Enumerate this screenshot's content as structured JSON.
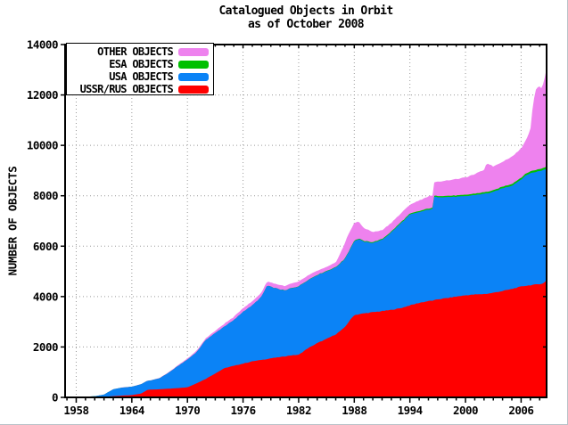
{
  "window": {
    "background": "#ffffff",
    "edge_border_color": "#b9c2c9"
  },
  "chart_data": {
    "type": "area",
    "stacked": true,
    "title": "Catalogued Objects in Orbit",
    "subtitle": "as of October 2008",
    "xlabel": "",
    "ylabel": "NUMBER OF OBJECTS",
    "xlim": [
      1956.8,
      2008.75
    ],
    "ylim": [
      0,
      14000
    ],
    "x_ticks": [
      1958,
      1964,
      1970,
      1976,
      1982,
      1988,
      1994,
      2000,
      2006
    ],
    "x_minor_tick_step": 1,
    "y_ticks": [
      0,
      2000,
      4000,
      6000,
      8000,
      10000,
      12000,
      14000
    ],
    "grid": "dotted",
    "grid_color": "#9a9a9a",
    "axis_color": "#000000",
    "legend": {
      "position": "top-left",
      "entries": [
        "other",
        "esa",
        "usa",
        "ussr_rus"
      ]
    },
    "years": [
      1957,
      1958,
      1959,
      1960,
      1961,
      1961.5,
      1962,
      1963,
      1964,
      1965,
      1965.7,
      1966,
      1967,
      1968,
      1969,
      1970,
      1971,
      1972,
      1973,
      1974,
      1975,
      1976,
      1977,
      1978,
      1978.6,
      1979,
      1980,
      1980.6,
      1981,
      1982,
      1983,
      1984,
      1985,
      1986,
      1986.9,
      1987.3,
      1988,
      1988.5,
      1989,
      1990,
      1991,
      1992,
      1993,
      1994,
      1995,
      1996,
      1996.45,
      1996.6,
      1997,
      1998,
      1999,
      2000,
      2001,
      2002,
      2002.3,
      2003,
      2004,
      2005,
      2006,
      2006.5,
      2007,
      2007.3,
      2007.6,
      2008,
      2008.2,
      2008.45,
      2008.75
    ],
    "series": [
      {
        "name": "ussr_rus",
        "label": "USSR/RUS OBJECTS",
        "color": "#ff0000",
        "values": [
          2,
          5,
          10,
          15,
          25,
          35,
          50,
          70,
          90,
          150,
          300,
          310,
          320,
          345,
          370,
          400,
          560,
          740,
          950,
          1160,
          1250,
          1340,
          1430,
          1490,
          1520,
          1550,
          1600,
          1630,
          1660,
          1690,
          1950,
          2150,
          2320,
          2500,
          2750,
          2950,
          3270,
          3300,
          3330,
          3380,
          3420,
          3470,
          3540,
          3650,
          3750,
          3820,
          3840,
          3850,
          3890,
          3940,
          4000,
          4050,
          4080,
          4100,
          4110,
          4150,
          4220,
          4300,
          4400,
          4430,
          4450,
          4460,
          4480,
          4500,
          4510,
          4530,
          4650
        ]
      },
      {
        "name": "usa",
        "label": "USA OBJECTS",
        "color": "#0b83f6",
        "values": [
          0,
          8,
          13,
          30,
          85,
          185,
          270,
          320,
          330,
          370,
          360,
          355,
          440,
          640,
          880,
          1100,
          1240,
          1550,
          1600,
          1660,
          1810,
          2060,
          2220,
          2510,
          2920,
          2830,
          2680,
          2600,
          2650,
          2710,
          2700,
          2700,
          2680,
          2650,
          2700,
          2750,
          2930,
          2980,
          2850,
          2750,
          2830,
          3080,
          3360,
          3600,
          3600,
          3630,
          3640,
          4100,
          4060,
          4010,
          3960,
          3930,
          3950,
          3980,
          3985,
          4000,
          4080,
          4100,
          4250,
          4370,
          4450,
          4460,
          4470,
          4480,
          4490,
          4500,
          4430
        ]
      },
      {
        "name": "esa",
        "label": "ESA OBJECTS",
        "color": "#00c000",
        "values": [
          0,
          0,
          0,
          0,
          0,
          0,
          0,
          0,
          0,
          0,
          0,
          0,
          0,
          0,
          0,
          0,
          0,
          0,
          0,
          0,
          0,
          0,
          0,
          0,
          0,
          5,
          8,
          9,
          10,
          11,
          13,
          15,
          17,
          20,
          22,
          23,
          25,
          26,
          28,
          30,
          33,
          36,
          38,
          40,
          43,
          45,
          45,
          46,
          48,
          50,
          52,
          55,
          57,
          60,
          60,
          62,
          65,
          70,
          72,
          74,
          76,
          77,
          78,
          80,
          81,
          82,
          85
        ]
      },
      {
        "name": "other",
        "label": "OTHER OBJECTS",
        "color": "#ee82ee",
        "values": [
          0,
          0,
          0,
          2,
          3,
          3,
          5,
          8,
          10,
          10,
          10,
          12,
          15,
          20,
          30,
          45,
          55,
          70,
          90,
          110,
          130,
          150,
          160,
          170,
          170,
          170,
          170,
          175,
          175,
          180,
          170,
          160,
          150,
          180,
          560,
          700,
          700,
          660,
          520,
          400,
          350,
          345,
          350,
          360,
          420,
          480,
          490,
          520,
          560,
          610,
          650,
          690,
          770,
          890,
          1150,
          950,
          990,
          1080,
          1150,
          1320,
          1650,
          2700,
          3200,
          3300,
          3180,
          3400,
          3900
        ]
      }
    ]
  }
}
